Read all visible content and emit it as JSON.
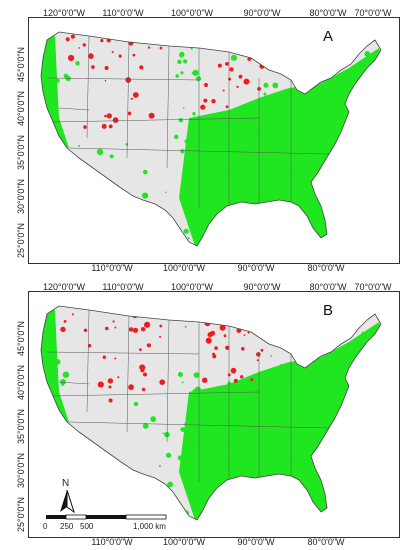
{
  "colors": {
    "green": "#1fe61f",
    "red": "#ee1c1c",
    "grey": "#e6e6e6",
    "state_line": "#555555"
  },
  "panels": [
    {
      "label": "A",
      "top_lon_labels": [
        "120°0'0\"W",
        "110°0'0\"W",
        "100°0'0\"W",
        "90°0'0\"W",
        "80°0'0\"W",
        "70°0'0\"W"
      ],
      "bottom_lon_labels": [
        "110°0'0\"W",
        "100°0'0\"W",
        "90°0'0\"W",
        "80°0'0\"W"
      ],
      "lat_labels": [
        "45°0'0\"N",
        "40°0'0\"N",
        "35°0'0\"N",
        "30°0'0\"N",
        "25°0'0\"N"
      ]
    },
    {
      "label": "B",
      "top_lon_labels": [
        "120°0'0\"W",
        "110°0'0\"W",
        "100°0'0\"W",
        "90°0'0\"W",
        "80°0'0\"W",
        "70°0'0\"W"
      ],
      "bottom_lon_labels": [
        "110°0'0\"W",
        "100°0'0\"W",
        "90°0'0\"W",
        "80°0'0\"W"
      ],
      "lat_labels": [
        "45°0'0\"N",
        "40°0'0\"N",
        "35°0'0\"N",
        "30°0'0\"N",
        "25°0'0\"N"
      ]
    }
  ],
  "north_arrow": {
    "label": "N"
  },
  "scale_bar": {
    "ticks": [
      "0",
      "250",
      "500",
      "1,000 km"
    ]
  }
}
